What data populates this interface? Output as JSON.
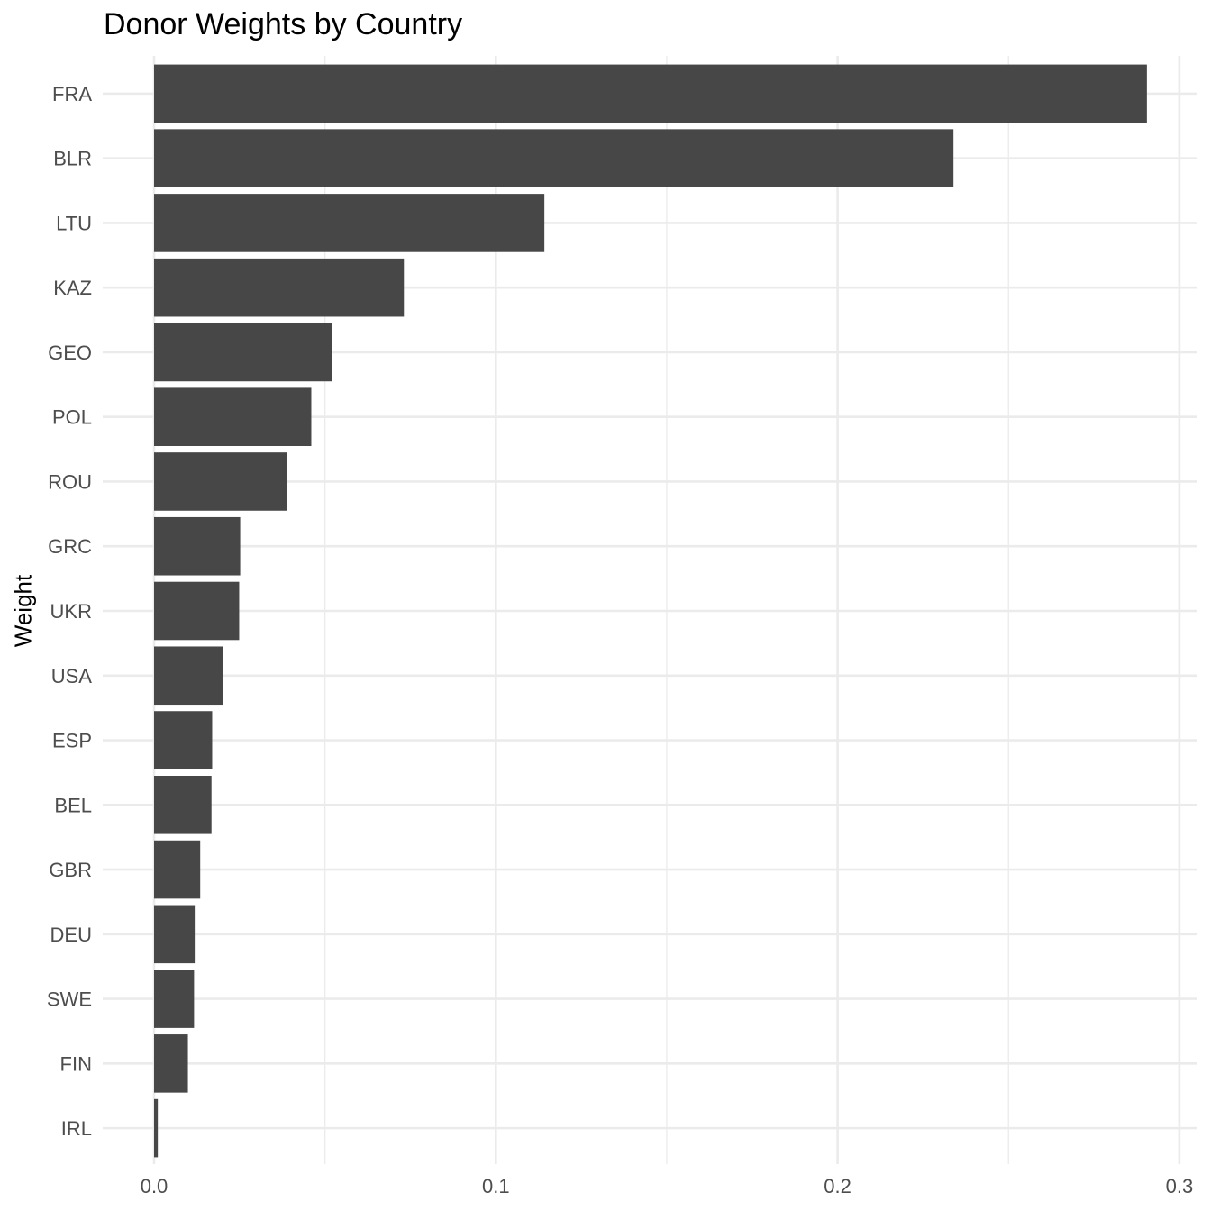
{
  "chart_data": {
    "type": "bar",
    "orientation": "horizontal",
    "title": "Donor Weights by Country",
    "xlabel": "",
    "ylabel": "Weight",
    "categories": [
      "FRA",
      "BLR",
      "LTU",
      "KAZ",
      "GEO",
      "POL",
      "ROU",
      "GRC",
      "UKR",
      "USA",
      "ESP",
      "BEL",
      "GBR",
      "DEU",
      "SWE",
      "FIN",
      "IRL"
    ],
    "values": [
      0.2905,
      0.2339,
      0.1142,
      0.0731,
      0.052,
      0.046,
      0.0389,
      0.0252,
      0.0249,
      0.0203,
      0.017,
      0.0168,
      0.0135,
      0.0119,
      0.0117,
      0.0099,
      0.0011
    ],
    "xlim": [
      -0.015,
      0.3
    ],
    "xticks": [
      0.0,
      0.1,
      0.2,
      0.3
    ],
    "xtick_labels": [
      "0.0",
      "0.1",
      "0.2",
      "0.3"
    ],
    "grid": true,
    "bar_color": "#474747",
    "grid_color": "#ebebeb"
  }
}
